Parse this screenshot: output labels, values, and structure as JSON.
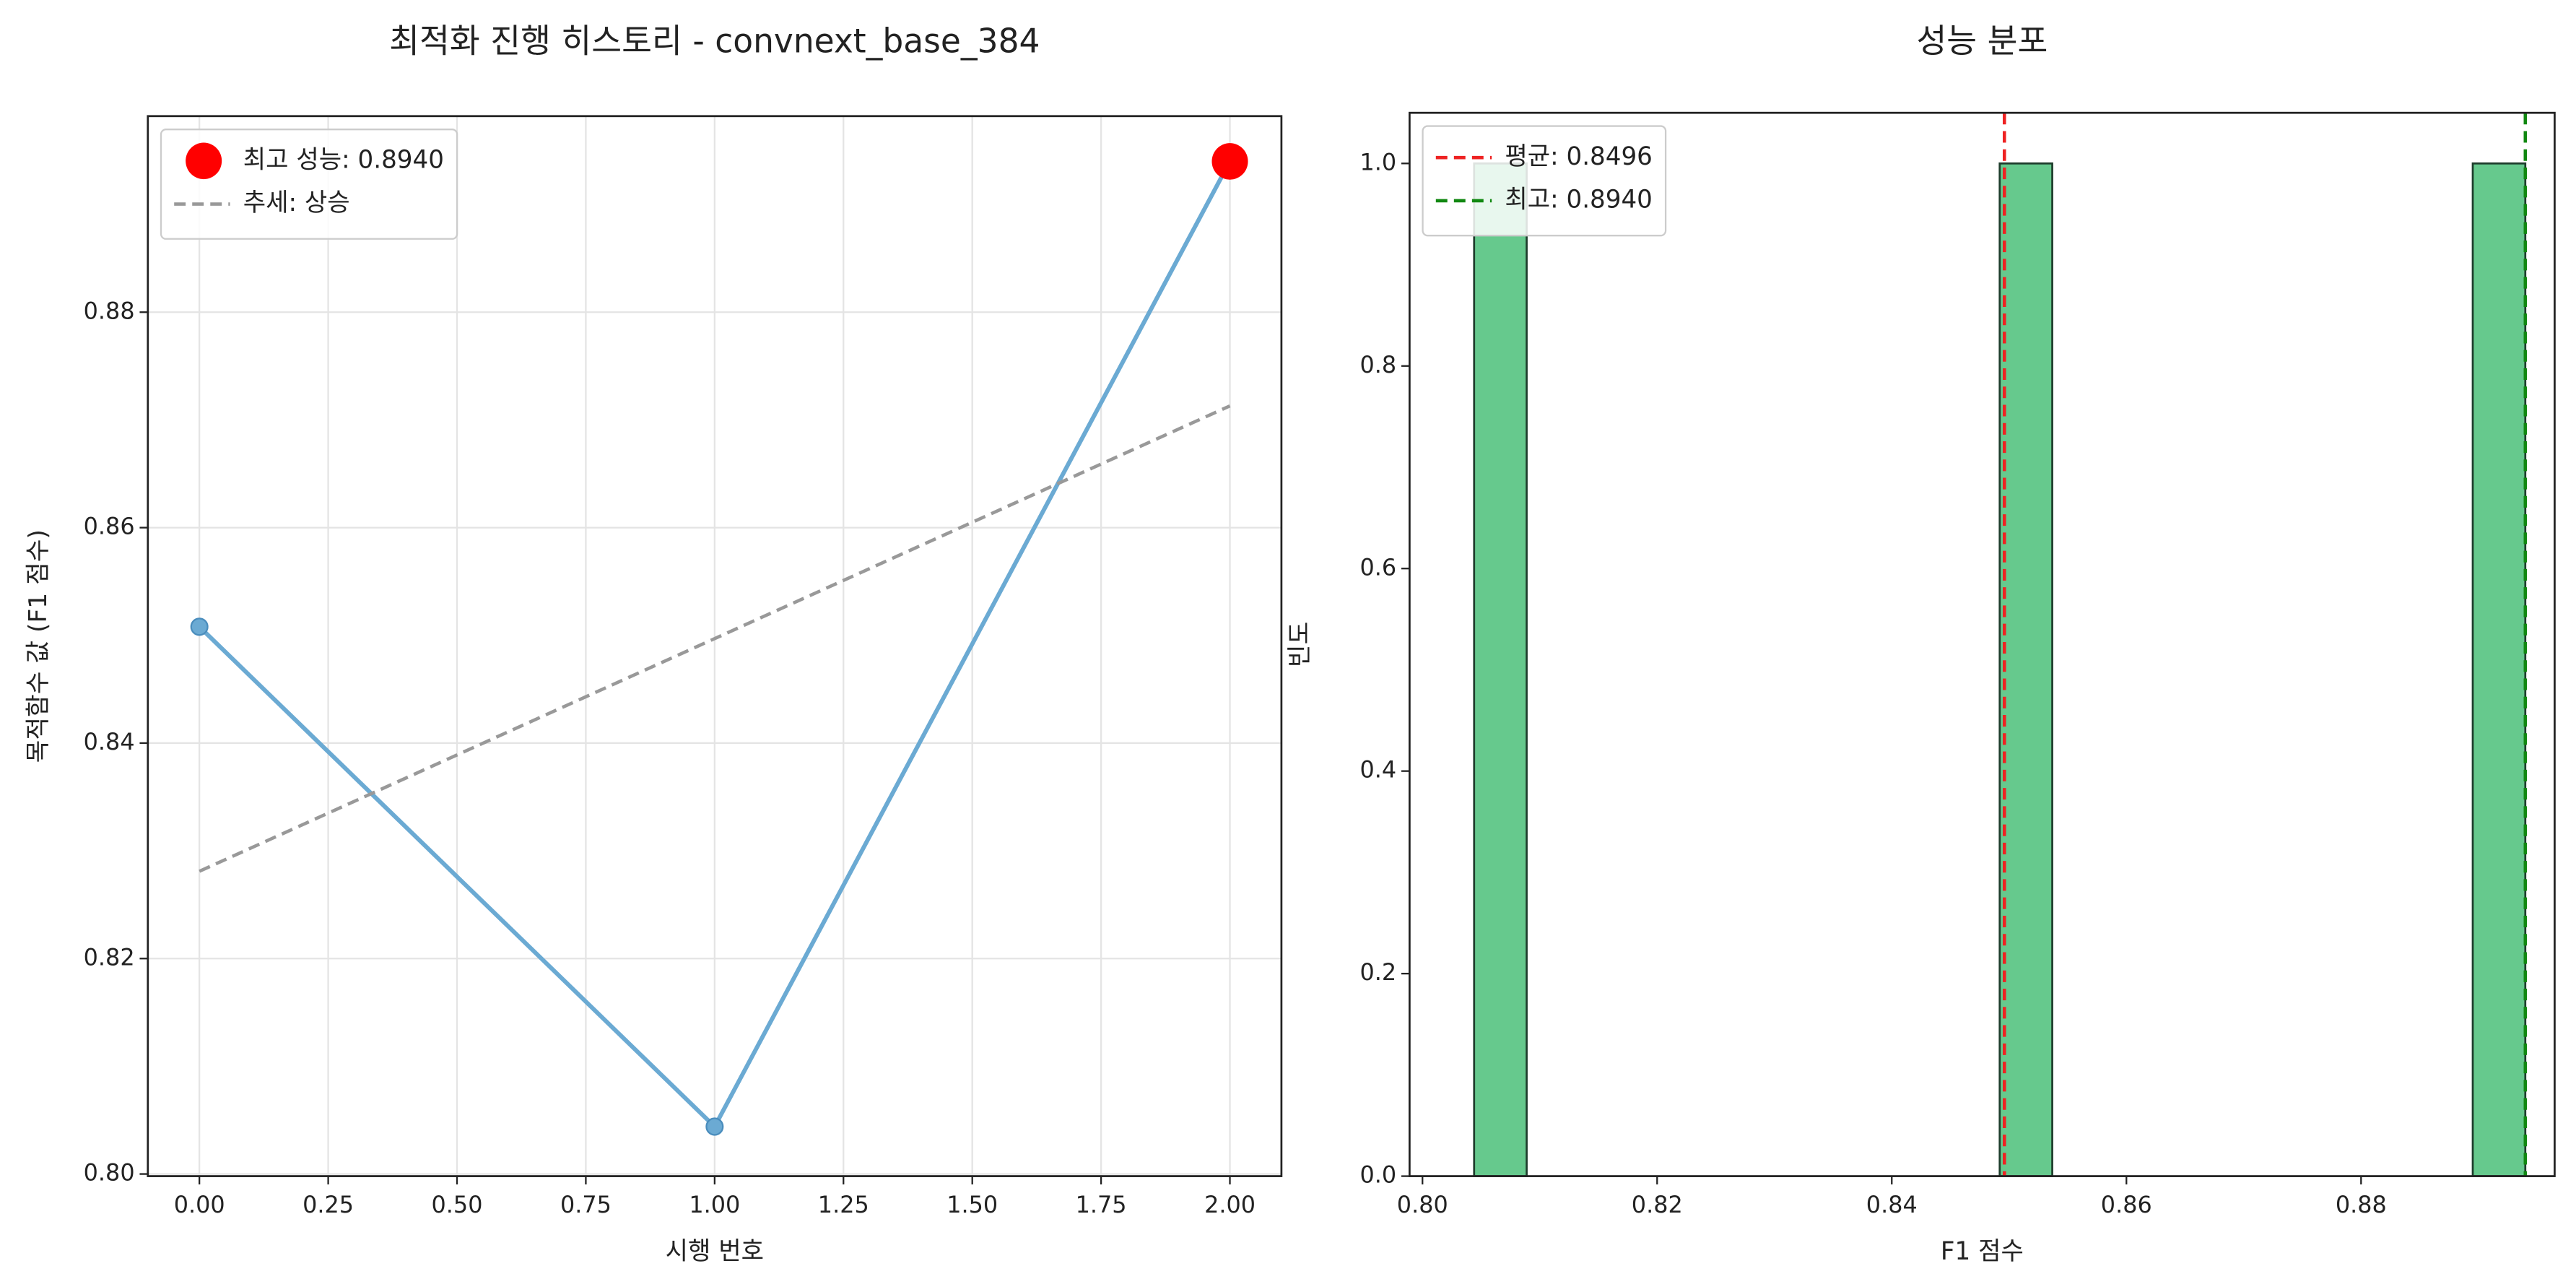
{
  "chart_data": [
    {
      "type": "line",
      "title": "최적화 진행 히스토리 - convnext_base_384",
      "x_label": "시행 번호",
      "y_label": "목적함수 값 (F1 점수)",
      "x": [
        0,
        1,
        2
      ],
      "series": [
        {
          "color": "#6baad3",
          "values": [
            0.8508,
            0.8044,
            0.894
          ]
        }
      ],
      "highlight": {
        "name": "최고 성능: 0.8940",
        "x": 2,
        "value": 0.894,
        "color": "#ff0000"
      },
      "trend": {
        "name": "추세: 상승",
        "x": [
          0,
          2
        ],
        "values": [
          0.8281,
          0.8713
        ],
        "color": "#999999"
      },
      "xlim": [
        -0.1,
        2.1
      ],
      "ylim": [
        0.7998,
        0.8982
      ],
      "xticks": [
        {
          "value": 0,
          "label": "0.00"
        },
        0.25,
        {
          "value": 0.5,
          "label": "0.50"
        },
        0.75,
        {
          "value": 1,
          "label": "1.00"
        },
        1.25,
        {
          "value": 1.5,
          "label": "1.50"
        },
        1.75,
        {
          "value": 2,
          "label": "2.00"
        }
      ],
      "yticks": [
        {
          "value": 0.8,
          "label": "0.80"
        },
        0.82,
        0.84,
        0.86,
        0.88
      ],
      "grid": true,
      "legend": "upper left"
    },
    {
      "type": "histogram",
      "title": "성능 분포",
      "x_label": "F1 점수",
      "y_label": "빈도",
      "bins": [
        0.8044,
        0.80888,
        0.81336,
        0.81784,
        0.82232,
        0.8268,
        0.83128,
        0.83576,
        0.84024,
        0.84472,
        0.8492,
        0.85368,
        0.85816,
        0.86264,
        0.86712,
        0.8716,
        0.87608,
        0.88056,
        0.88504,
        0.88952,
        0.894
      ],
      "counts": [
        1,
        0,
        0,
        0,
        0,
        0,
        0,
        0,
        0,
        0,
        1,
        0,
        0,
        0,
        0,
        0,
        0,
        0,
        0,
        1
      ],
      "color": "#66c98d",
      "vlines": [
        {
          "name": "평균: 0.8496",
          "value": 0.8496,
          "color": "#ee2222"
        },
        {
          "name": "최고: 0.8940",
          "value": 0.894,
          "color": "#118811"
        }
      ],
      "xlim": [
        0.7989,
        0.8965
      ],
      "ylim": [
        0,
        1.05
      ],
      "xticks": [
        {
          "value": 0.8,
          "label": "0.80"
        },
        0.82,
        0.84,
        0.86,
        0.88
      ],
      "yticks": [
        {
          "value": 0,
          "label": "0.0"
        },
        0.2,
        0.4,
        0.6,
        0.8,
        {
          "value": 1,
          "label": "1.0"
        }
      ],
      "grid": false,
      "legend": "upper left"
    }
  ]
}
